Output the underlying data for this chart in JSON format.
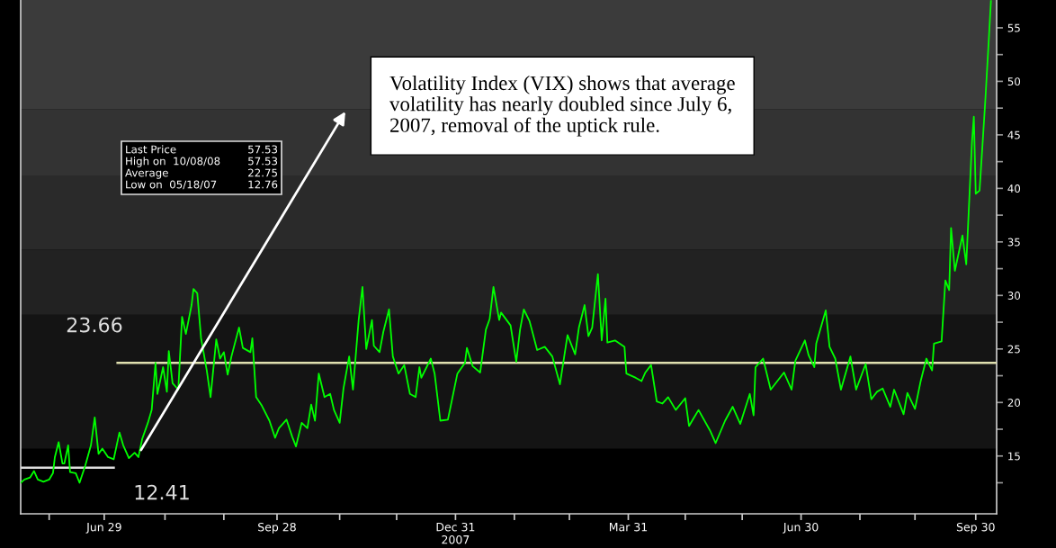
{
  "chart_data": {
    "type": "line",
    "xlim": [
      "2007-05-16",
      "2008-10-11"
    ],
    "ylim": [
      9.6,
      57.6
    ],
    "xticks": [
      {
        "value": "2007-05-31",
        "label": null
      },
      {
        "value": "2007-06-29",
        "label": "Jun 29"
      },
      {
        "value": "2007-07-31",
        "label": null
      },
      {
        "value": "2007-08-31",
        "label": null
      },
      {
        "value": "2007-09-28",
        "label": "Sep 28"
      },
      {
        "value": "2007-10-31",
        "label": null
      },
      {
        "value": "2007-11-30",
        "label": null
      },
      {
        "value": "2007-12-31",
        "label": "Dec 31\n2007"
      },
      {
        "value": "2008-01-31",
        "label": null
      },
      {
        "value": "2008-02-29",
        "label": null
      },
      {
        "value": "2008-03-31",
        "label": "Mar 31"
      },
      {
        "value": "2008-04-30",
        "label": null
      },
      {
        "value": "2008-05-30",
        "label": null
      },
      {
        "value": "2008-06-30",
        "label": "Jun 30"
      },
      {
        "value": "2008-07-31",
        "label": null
      },
      {
        "value": "2008-08-29",
        "label": null
      },
      {
        "value": "2008-09-30",
        "label": "Sep 30"
      }
    ],
    "yticks": [
      {
        "value": 12.5,
        "label": null
      },
      15,
      {
        "value": 17.5,
        "label": null
      },
      20,
      {
        "value": 22.5,
        "label": null
      },
      25,
      {
        "value": 27.5,
        "label": null
      },
      30,
      {
        "value": 32.5,
        "label": null
      },
      35,
      {
        "value": 37.5,
        "label": null
      },
      40,
      {
        "value": 42.5,
        "label": null
      },
      45,
      {
        "value": 47.5,
        "label": null
      },
      50,
      {
        "value": 52.5,
        "label": null
      },
      55
    ],
    "bands": [
      {
        "axis": "y",
        "from": 15.7,
        "to": 28.2,
        "color": "#141414"
      },
      {
        "axis": "y",
        "from": 28.2,
        "to": 34.3,
        "color": "#222222"
      },
      {
        "axis": "y",
        "from": 34.3,
        "to": 41.2,
        "color": "#2a2a2a"
      },
      {
        "axis": "y",
        "from": 41.2,
        "to": 47.4,
        "color": "#333333"
      },
      {
        "axis": "y",
        "from": 47.4,
        "to": 57.6,
        "color": "#3b3b3b"
      }
    ],
    "series": [
      {
        "type": "line",
        "color": "#e0e0b0",
        "x": [
          "2007-07-06",
          "2008-10-11"
        ],
        "values": [
          23.7,
          23.7
        ]
      },
      {
        "type": "line",
        "color": "#dddddd",
        "x": [
          "2007-05-16",
          "2007-07-04"
        ],
        "values": [
          13.9,
          13.9
        ]
      },
      {
        "color": "#00ff00",
        "x": [
          "2007-05-16",
          "2007-05-18",
          "2007-05-21",
          "2007-05-23",
          "2007-05-25",
          "2007-05-28",
          "2007-05-31",
          "2007-06-02",
          "2007-06-03",
          "2007-06-05",
          "2007-06-07",
          "2007-06-08",
          "2007-06-10",
          "2007-06-11",
          "2007-06-14",
          "2007-06-16",
          "2007-06-19",
          "2007-06-22",
          "2007-06-24",
          "2007-06-26",
          "2007-06-28",
          "2007-07-01",
          "2007-07-04",
          "2007-07-07",
          "2007-07-09",
          "2007-07-12",
          "2007-07-15",
          "2007-07-17",
          "2007-07-19",
          "2007-07-22",
          "2007-07-24",
          "2007-07-26",
          "2007-07-27",
          "2007-07-30",
          "2007-08-01",
          "2007-08-02",
          "2007-08-04",
          "2007-08-07",
          "2007-08-09",
          "2007-08-11",
          "2007-08-14",
          "2007-08-15",
          "2007-08-17",
          "2007-08-19",
          "2007-08-22",
          "2007-08-24",
          "2007-08-27",
          "2007-08-29",
          "2007-08-31",
          "2007-09-02",
          "2007-09-04",
          "2007-09-08",
          "2007-09-10",
          "2007-09-14",
          "2007-09-15",
          "2007-09-17",
          "2007-09-20",
          "2007-09-24",
          "2007-09-27",
          "2007-09-29",
          "2007-10-03",
          "2007-10-06",
          "2007-10-08",
          "2007-10-11",
          "2007-10-14",
          "2007-10-16",
          "2007-10-18",
          "2007-10-20",
          "2007-10-23",
          "2007-10-26",
          "2007-10-28",
          "2007-10-31",
          "2007-11-02",
          "2007-11-05",
          "2007-11-07",
          "2007-11-10",
          "2007-11-12",
          "2007-11-14",
          "2007-11-17",
          "2007-11-18",
          "2007-11-21",
          "2007-11-23",
          "2007-11-26",
          "2007-11-28",
          "2007-12-01",
          "2007-12-04",
          "2007-12-07",
          "2007-12-10",
          "2007-12-12",
          "2007-12-13",
          "2007-12-18",
          "2007-12-20",
          "2007-12-23",
          "2007-12-27",
          "2008-01-01",
          "2008-01-05",
          "2008-01-06",
          "2008-01-09",
          "2008-01-13",
          "2008-01-16",
          "2008-01-18",
          "2008-01-20",
          "2008-01-23",
          "2008-01-24",
          "2008-01-29",
          "2008-02-01",
          "2008-02-03",
          "2008-02-05",
          "2008-02-08",
          "2008-02-12",
          "2008-02-16",
          "2008-02-20",
          "2008-02-24",
          "2008-02-28",
          "2008-03-03",
          "2008-03-05",
          "2008-03-08",
          "2008-03-10",
          "2008-03-12",
          "2008-03-15",
          "2008-03-17",
          "2008-03-19",
          "2008-03-20",
          "2008-03-24",
          "2008-03-29",
          "2008-03-30",
          "2008-04-04",
          "2008-04-07",
          "2008-04-09",
          "2008-04-12",
          "2008-04-15",
          "2008-04-18",
          "2008-04-21",
          "2008-04-25",
          "2008-04-30",
          "2008-05-02",
          "2008-05-04",
          "2008-05-07",
          "2008-05-13",
          "2008-05-16",
          "2008-05-21",
          "2008-05-25",
          "2008-05-29",
          "2008-06-03",
          "2008-06-05",
          "2008-06-06",
          "2008-06-10",
          "2008-06-14",
          "2008-06-21",
          "2008-06-25",
          "2008-06-27",
          "2008-07-02",
          "2008-07-04",
          "2008-07-07",
          "2008-07-08",
          "2008-07-13",
          "2008-07-15",
          "2008-07-18",
          "2008-07-21",
          "2008-07-26",
          "2008-07-29",
          "2008-08-03",
          "2008-08-06",
          "2008-08-09",
          "2008-08-12",
          "2008-08-16",
          "2008-08-18",
          "2008-08-23",
          "2008-08-25",
          "2008-08-29",
          "2008-09-01",
          "2008-09-04",
          "2008-09-07",
          "2008-09-08",
          "2008-09-12",
          "2008-09-14",
          "2008-09-16",
          "2008-09-17",
          "2008-09-19",
          "2008-09-23",
          "2008-09-25",
          "2008-09-28",
          "2008-09-29",
          "2008-09-30",
          "2008-10-02",
          "2008-10-04",
          "2008-10-05",
          "2008-10-07",
          "2008-10-08"
        ],
        "values": [
          12.5,
          12.8,
          13.0,
          13.6,
          12.8,
          12.6,
          12.8,
          13.4,
          14.9,
          16.3,
          14.3,
          14.3,
          16.0,
          13.5,
          13.4,
          12.5,
          14.1,
          16.0,
          18.6,
          15.2,
          15.7,
          14.9,
          14.7,
          17.2,
          16.0,
          14.8,
          15.3,
          14.9,
          16.6,
          18.1,
          19.3,
          23.7,
          20.8,
          23.3,
          21.0,
          24.8,
          21.8,
          21.2,
          28.0,
          26.4,
          29.1,
          30.6,
          30.2,
          26.0,
          23.0,
          20.5,
          25.9,
          24.1,
          24.7,
          22.6,
          24.3,
          27.0,
          25.1,
          24.7,
          26.0,
          20.5,
          19.7,
          18.3,
          16.7,
          17.6,
          18.4,
          16.8,
          15.9,
          18.1,
          17.6,
          19.8,
          18.3,
          22.7,
          20.5,
          20.8,
          19.3,
          18.1,
          21.3,
          24.3,
          21.2,
          27.7,
          30.8,
          25.0,
          27.7,
          25.3,
          24.7,
          26.6,
          28.7,
          24.3,
          22.7,
          23.5,
          20.8,
          20.5,
          23.3,
          22.3,
          24.1,
          22.7,
          18.3,
          18.4,
          22.7,
          23.7,
          25.1,
          23.4,
          22.8,
          26.8,
          27.8,
          30.8,
          27.7,
          28.4,
          27.2,
          23.8,
          26.8,
          28.7,
          27.6,
          24.9,
          25.2,
          24.3,
          21.7,
          26.3,
          24.5,
          27.0,
          29.1,
          26.2,
          27.0,
          32.0,
          25.8,
          29.7,
          25.6,
          25.8,
          25.2,
          22.7,
          22.3,
          22.0,
          22.8,
          23.5,
          20.1,
          19.9,
          20.5,
          19.3,
          20.4,
          17.8,
          18.4,
          19.3,
          17.4,
          16.2,
          18.3,
          19.6,
          18.0,
          20.8,
          18.8,
          23.3,
          24.1,
          21.2,
          22.8,
          21.2,
          23.9,
          25.8,
          24.4,
          23.3,
          25.5,
          28.6,
          25.2,
          24.1,
          21.2,
          24.3,
          21.2,
          23.6,
          20.3,
          21.0,
          21.3,
          19.6,
          21.2,
          18.9,
          20.9,
          19.4,
          22.0,
          24.1,
          23.0,
          25.5,
          25.7,
          31.4,
          30.5,
          36.3,
          32.3,
          35.6,
          32.9,
          44.3,
          46.7,
          39.5,
          39.8,
          45.3,
          48.1,
          54.3,
          57.5
        ]
      }
    ],
    "annotations": [
      "Volatility Index (VIX) shows that average\nvolatility has nearly doubled since July 6,\n2007, removal of the uptick rule.",
      "23.66",
      "12.41",
      "Last Price",
      "57.53",
      "High on  10/08/08",
      "57.53",
      "Average",
      "22.75",
      "Low on  05/18/07",
      "12.76"
    ]
  }
}
